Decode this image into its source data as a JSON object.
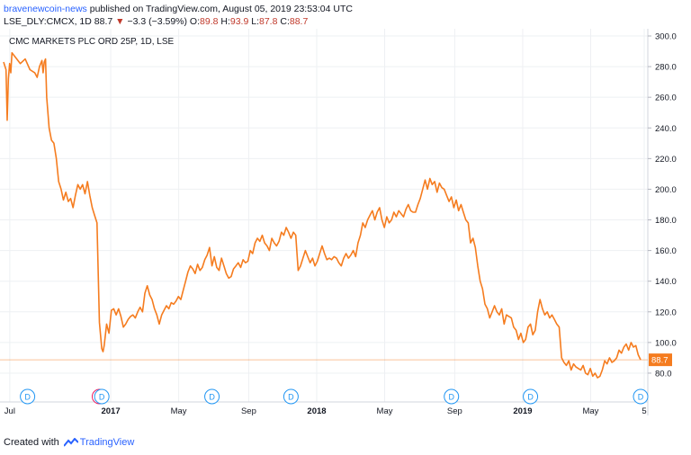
{
  "header": {
    "author": "bravenewcoin-news",
    "published_text": " published on TradingView.com, August 05, 2019 23:53:04 UTC",
    "symbol": "LSE_DLY:CMCX, 1D",
    "last": "88.7",
    "change_arrow": "▼",
    "change": "−3.3 (−3.59%)",
    "o_label": "O:",
    "o_value": "89.8",
    "h_label": "H:",
    "h_value": "93.9",
    "l_label": "L:",
    "l_value": "87.8",
    "c_label": "C:",
    "c_value": "88.7"
  },
  "footer": {
    "created_with": "Created with",
    "brand": "TradingView"
  },
  "colors": {
    "line": "#f57c1f",
    "grid": "#eef0f3",
    "last_price_bg": "#f57c1f",
    "event_dividend": "#2196f3",
    "event_earnings": "#e91e63"
  },
  "chart_data": {
    "type": "line",
    "title": "CMC MARKETS PLC ORD 25P, 1D, LSE",
    "ylim": [
      70,
      300
    ],
    "y_ticks": [
      "300.0",
      "280.0",
      "260.0",
      "240.0",
      "220.0",
      "200.0",
      "180.0",
      "160.0",
      "140.0",
      "120.0",
      "100.0",
      "80.0"
    ],
    "x_ticks": [
      "Jul",
      "2017",
      "May",
      "Sep",
      "2018",
      "May",
      "Sep",
      "2019",
      "May",
      "5"
    ],
    "grid": true,
    "last_price_label": "88.7",
    "series": [
      {
        "values": [
          [
            2016.5,
            283
          ],
          [
            2016.51,
            278
          ],
          [
            2016.515,
            245
          ],
          [
            2016.52,
            272
          ],
          [
            2016.525,
            282
          ],
          [
            2016.53,
            276
          ],
          [
            2016.535,
            289
          ],
          [
            2016.55,
            286
          ],
          [
            2016.57,
            282
          ],
          [
            2016.59,
            285
          ],
          [
            2016.61,
            278
          ],
          [
            2016.63,
            276
          ],
          [
            2016.64,
            273
          ],
          [
            2016.65,
            280
          ],
          [
            2016.66,
            284
          ],
          [
            2016.665,
            276
          ],
          [
            2016.67,
            283
          ],
          [
            2016.675,
            285
          ],
          [
            2016.68,
            260
          ],
          [
            2016.69,
            240
          ],
          [
            2016.7,
            232
          ],
          [
            2016.71,
            230
          ],
          [
            2016.72,
            220
          ],
          [
            2016.73,
            205
          ],
          [
            2016.74,
            200
          ],
          [
            2016.75,
            193
          ],
          [
            2016.76,
            198
          ],
          [
            2016.77,
            192
          ],
          [
            2016.78,
            194
          ],
          [
            2016.79,
            188
          ],
          [
            2016.8,
            196
          ],
          [
            2016.81,
            203
          ],
          [
            2016.82,
            200
          ],
          [
            2016.83,
            203
          ],
          [
            2016.84,
            197
          ],
          [
            2016.85,
            205
          ],
          [
            2016.86,
            196
          ],
          [
            2016.87,
            188
          ],
          [
            2016.88,
            183
          ],
          [
            2016.89,
            178
          ],
          [
            2016.9,
            113
          ],
          [
            2016.91,
            96
          ],
          [
            2016.915,
            94
          ],
          [
            2016.92,
            98
          ],
          [
            2016.93,
            112
          ],
          [
            2016.94,
            106
          ],
          [
            2016.95,
            121
          ],
          [
            2016.96,
            122
          ],
          [
            2016.97,
            118
          ],
          [
            2016.98,
            122
          ],
          [
            2016.99,
            117
          ],
          [
            2017.0,
            110
          ],
          [
            2017.01,
            112
          ],
          [
            2017.02,
            115
          ],
          [
            2017.03,
            117
          ],
          [
            2017.04,
            118
          ],
          [
            2017.05,
            116
          ],
          [
            2017.06,
            120
          ],
          [
            2017.07,
            123
          ],
          [
            2017.08,
            120
          ],
          [
            2017.09,
            132
          ],
          [
            2017.1,
            137
          ],
          [
            2017.11,
            131
          ],
          [
            2017.12,
            128
          ],
          [
            2017.13,
            122
          ],
          [
            2017.14,
            118
          ],
          [
            2017.15,
            112
          ],
          [
            2017.16,
            118
          ],
          [
            2017.17,
            121
          ],
          [
            2017.18,
            124
          ],
          [
            2017.19,
            122
          ],
          [
            2017.2,
            126
          ],
          [
            2017.21,
            125
          ],
          [
            2017.22,
            127
          ],
          [
            2017.23,
            130
          ],
          [
            2017.24,
            128
          ],
          [
            2017.25,
            134
          ],
          [
            2017.26,
            140
          ],
          [
            2017.27,
            146
          ],
          [
            2017.28,
            150
          ],
          [
            2017.29,
            148
          ],
          [
            2017.3,
            145
          ],
          [
            2017.31,
            151
          ],
          [
            2017.32,
            147
          ],
          [
            2017.33,
            149
          ],
          [
            2017.34,
            154
          ],
          [
            2017.35,
            157
          ],
          [
            2017.36,
            162
          ],
          [
            2017.37,
            150
          ],
          [
            2017.38,
            156
          ],
          [
            2017.39,
            149
          ],
          [
            2017.4,
            147
          ],
          [
            2017.41,
            155
          ],
          [
            2017.42,
            150
          ],
          [
            2017.43,
            145
          ],
          [
            2017.44,
            142
          ],
          [
            2017.45,
            143
          ],
          [
            2017.46,
            148
          ],
          [
            2017.47,
            150
          ],
          [
            2017.48,
            152
          ],
          [
            2017.49,
            149
          ],
          [
            2017.5,
            154
          ],
          [
            2017.51,
            152
          ],
          [
            2017.52,
            153
          ],
          [
            2017.53,
            160
          ],
          [
            2017.54,
            158
          ],
          [
            2017.55,
            165
          ],
          [
            2017.56,
            168
          ],
          [
            2017.57,
            166
          ],
          [
            2017.58,
            170
          ],
          [
            2017.59,
            165
          ],
          [
            2017.6,
            163
          ],
          [
            2017.61,
            160
          ],
          [
            2017.62,
            168
          ],
          [
            2017.63,
            165
          ],
          [
            2017.64,
            163
          ],
          [
            2017.65,
            166
          ],
          [
            2017.66,
            172
          ],
          [
            2017.67,
            170
          ],
          [
            2017.68,
            175
          ],
          [
            2017.69,
            172
          ],
          [
            2017.7,
            168
          ],
          [
            2017.71,
            172
          ],
          [
            2017.72,
            170
          ],
          [
            2017.73,
            147
          ],
          [
            2017.74,
            150
          ],
          [
            2017.75,
            155
          ],
          [
            2017.76,
            160
          ],
          [
            2017.77,
            156
          ],
          [
            2017.78,
            152
          ],
          [
            2017.79,
            155
          ],
          [
            2017.8,
            150
          ],
          [
            2017.81,
            153
          ],
          [
            2017.82,
            158
          ],
          [
            2017.83,
            163
          ],
          [
            2017.84,
            158
          ],
          [
            2017.85,
            154
          ],
          [
            2017.86,
            155
          ],
          [
            2017.87,
            154
          ],
          [
            2017.88,
            156
          ],
          [
            2017.89,
            155
          ],
          [
            2017.9,
            152
          ],
          [
            2017.91,
            150
          ],
          [
            2017.92,
            155
          ],
          [
            2017.93,
            158
          ],
          [
            2017.94,
            155
          ],
          [
            2017.95,
            157
          ],
          [
            2017.96,
            160
          ],
          [
            2017.97,
            156
          ],
          [
            2017.98,
            165
          ],
          [
            2017.99,
            170
          ],
          [
            2018.0,
            178
          ],
          [
            2018.01,
            175
          ],
          [
            2018.02,
            180
          ],
          [
            2018.03,
            183
          ],
          [
            2018.04,
            186
          ],
          [
            2018.05,
            180
          ],
          [
            2018.06,
            185
          ],
          [
            2018.07,
            188
          ],
          [
            2018.08,
            180
          ],
          [
            2018.09,
            175
          ],
          [
            2018.1,
            182
          ],
          [
            2018.11,
            178
          ],
          [
            2018.12,
            180
          ],
          [
            2018.13,
            185
          ],
          [
            2018.14,
            182
          ],
          [
            2018.15,
            186
          ],
          [
            2018.16,
            184
          ],
          [
            2018.17,
            182
          ],
          [
            2018.18,
            187
          ],
          [
            2018.19,
            190
          ],
          [
            2018.2,
            186
          ],
          [
            2018.21,
            185
          ],
          [
            2018.22,
            185
          ],
          [
            2018.23,
            190
          ],
          [
            2018.24,
            194
          ],
          [
            2018.25,
            200
          ],
          [
            2018.26,
            206
          ],
          [
            2018.27,
            200
          ],
          [
            2018.28,
            207
          ],
          [
            2018.29,
            203
          ],
          [
            2018.3,
            205
          ],
          [
            2018.31,
            198
          ],
          [
            2018.32,
            204
          ],
          [
            2018.33,
            201
          ],
          [
            2018.34,
            200
          ],
          [
            2018.35,
            196
          ],
          [
            2018.36,
            192
          ],
          [
            2018.37,
            195
          ],
          [
            2018.38,
            188
          ],
          [
            2018.39,
            193
          ],
          [
            2018.4,
            186
          ],
          [
            2018.41,
            190
          ],
          [
            2018.42,
            185
          ],
          [
            2018.43,
            180
          ],
          [
            2018.44,
            178
          ],
          [
            2018.45,
            165
          ],
          [
            2018.46,
            168
          ],
          [
            2018.47,
            162
          ],
          [
            2018.48,
            150
          ],
          [
            2018.49,
            140
          ],
          [
            2018.5,
            135
          ],
          [
            2018.51,
            125
          ],
          [
            2018.52,
            122
          ],
          [
            2018.53,
            116
          ],
          [
            2018.54,
            120
          ],
          [
            2018.55,
            124
          ],
          [
            2018.56,
            120
          ],
          [
            2018.57,
            118
          ],
          [
            2018.58,
            122
          ],
          [
            2018.59,
            112
          ],
          [
            2018.6,
            118
          ],
          [
            2018.61,
            117
          ],
          [
            2018.62,
            116
          ],
          [
            2018.63,
            110
          ],
          [
            2018.64,
            108
          ],
          [
            2018.65,
            102
          ],
          [
            2018.66,
            106
          ],
          [
            2018.67,
            100
          ],
          [
            2018.68,
            102
          ],
          [
            2018.69,
            110
          ],
          [
            2018.7,
            112
          ],
          [
            2018.71,
            105
          ],
          [
            2018.72,
            108
          ],
          [
            2018.73,
            120
          ],
          [
            2018.74,
            128
          ],
          [
            2018.75,
            122
          ],
          [
            2018.76,
            118
          ],
          [
            2018.77,
            120
          ],
          [
            2018.78,
            116
          ],
          [
            2018.79,
            118
          ],
          [
            2018.8,
            115
          ],
          [
            2018.81,
            112
          ],
          [
            2018.82,
            110
          ],
          [
            2018.83,
            90
          ],
          [
            2018.84,
            87
          ],
          [
            2018.85,
            85
          ],
          [
            2018.86,
            88
          ],
          [
            2018.87,
            82
          ],
          [
            2018.88,
            86
          ],
          [
            2018.89,
            84
          ],
          [
            2018.9,
            83
          ],
          [
            2018.91,
            82
          ],
          [
            2018.92,
            85
          ],
          [
            2018.93,
            80
          ],
          [
            2018.94,
            79
          ],
          [
            2018.95,
            83
          ],
          [
            2018.96,
            78
          ],
          [
            2018.97,
            80
          ],
          [
            2018.98,
            77
          ],
          [
            2018.99,
            78
          ],
          [
            2019.0,
            82
          ],
          [
            2019.01,
            88
          ],
          [
            2019.02,
            86
          ],
          [
            2019.03,
            90
          ],
          [
            2019.04,
            87
          ],
          [
            2019.05,
            88
          ],
          [
            2019.06,
            90
          ],
          [
            2019.07,
            95
          ],
          [
            2019.08,
            93
          ],
          [
            2019.09,
            97
          ],
          [
            2019.1,
            99
          ],
          [
            2019.11,
            95
          ],
          [
            2019.12,
            100
          ],
          [
            2019.13,
            97
          ],
          [
            2019.14,
            98
          ],
          [
            2019.15,
            92
          ],
          [
            2019.16,
            88.7
          ]
        ]
      }
    ],
    "events": [
      {
        "type": "D",
        "x": 2016.6
      },
      {
        "type": "E",
        "x": 2016.9
      },
      {
        "type": "D",
        "x": 2016.91
      },
      {
        "type": "D",
        "x": 2017.37
      },
      {
        "type": "D",
        "x": 2017.7
      },
      {
        "type": "D",
        "x": 2018.37
      },
      {
        "type": "D",
        "x": 2018.7
      },
      {
        "type": "D",
        "x": 2019.16
      }
    ]
  }
}
